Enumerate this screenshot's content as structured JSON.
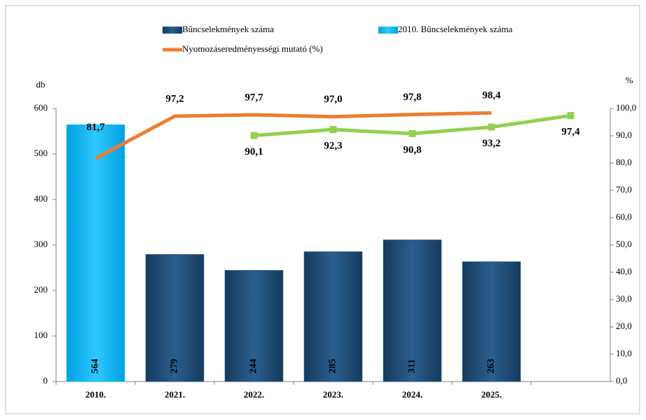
{
  "chart_data": {
    "type": "bar-line",
    "ylabel": "db",
    "y2label": "%",
    "categories": [
      "2010.",
      "2021.",
      "2022.",
      "2023.",
      "2024.",
      "2025.",
      null
    ],
    "series": [
      {
        "name": "Bűncselekmények száma",
        "type": "bar",
        "color": "#1f4e79",
        "values": [
          null,
          279,
          244,
          285,
          311,
          263,
          null
        ]
      },
      {
        "name": "2010. Bűncselekmények száma",
        "type": "bar",
        "color": "#00b0f0",
        "values": [
          564,
          null,
          null,
          null,
          null,
          null,
          null
        ]
      },
      {
        "name": "Nyomozáseredményességi mutató (%)",
        "type": "line",
        "axis": "y2",
        "color": "#ed7d31",
        "label_color": "#000000",
        "values": [
          81.7,
          97.2,
          97.7,
          97.0,
          97.8,
          98.4,
          null
        ],
        "value_labels": [
          "81,7",
          "97,2",
          "97,7",
          "97,0",
          "97,8",
          "98,4",
          null
        ]
      },
      {
        "type": "line",
        "axis": "y2",
        "color": "#92d050",
        "label_color": "#1e6b1e",
        "values": [
          null,
          null,
          90.1,
          92.3,
          90.8,
          93.2,
          97.4
        ],
        "value_labels": [
          null,
          null,
          "90,1",
          "92,3",
          "90,8",
          "93,2",
          "97,4"
        ]
      }
    ],
    "ylim": [
      0,
      600
    ],
    "yticks": [
      0,
      100,
      200,
      300,
      400,
      500,
      600
    ],
    "y2lim": [
      0,
      100
    ],
    "y2ticks": [
      {
        "value": 0,
        "label": "0,0"
      },
      {
        "value": 10,
        "label": "10,0"
      },
      {
        "value": 20,
        "label": "20,0"
      },
      {
        "value": 30,
        "label": "30,0"
      },
      {
        "value": 40,
        "label": "40,0"
      },
      {
        "value": 50,
        "label": "50,0"
      },
      {
        "value": 60,
        "label": "60,0"
      },
      {
        "value": 70,
        "label": "70,0"
      },
      {
        "value": 80,
        "label": "80,0"
      },
      {
        "value": 90,
        "label": "90,0"
      },
      {
        "value": 100,
        "label": "100,0"
      }
    ],
    "legend": "top"
  }
}
